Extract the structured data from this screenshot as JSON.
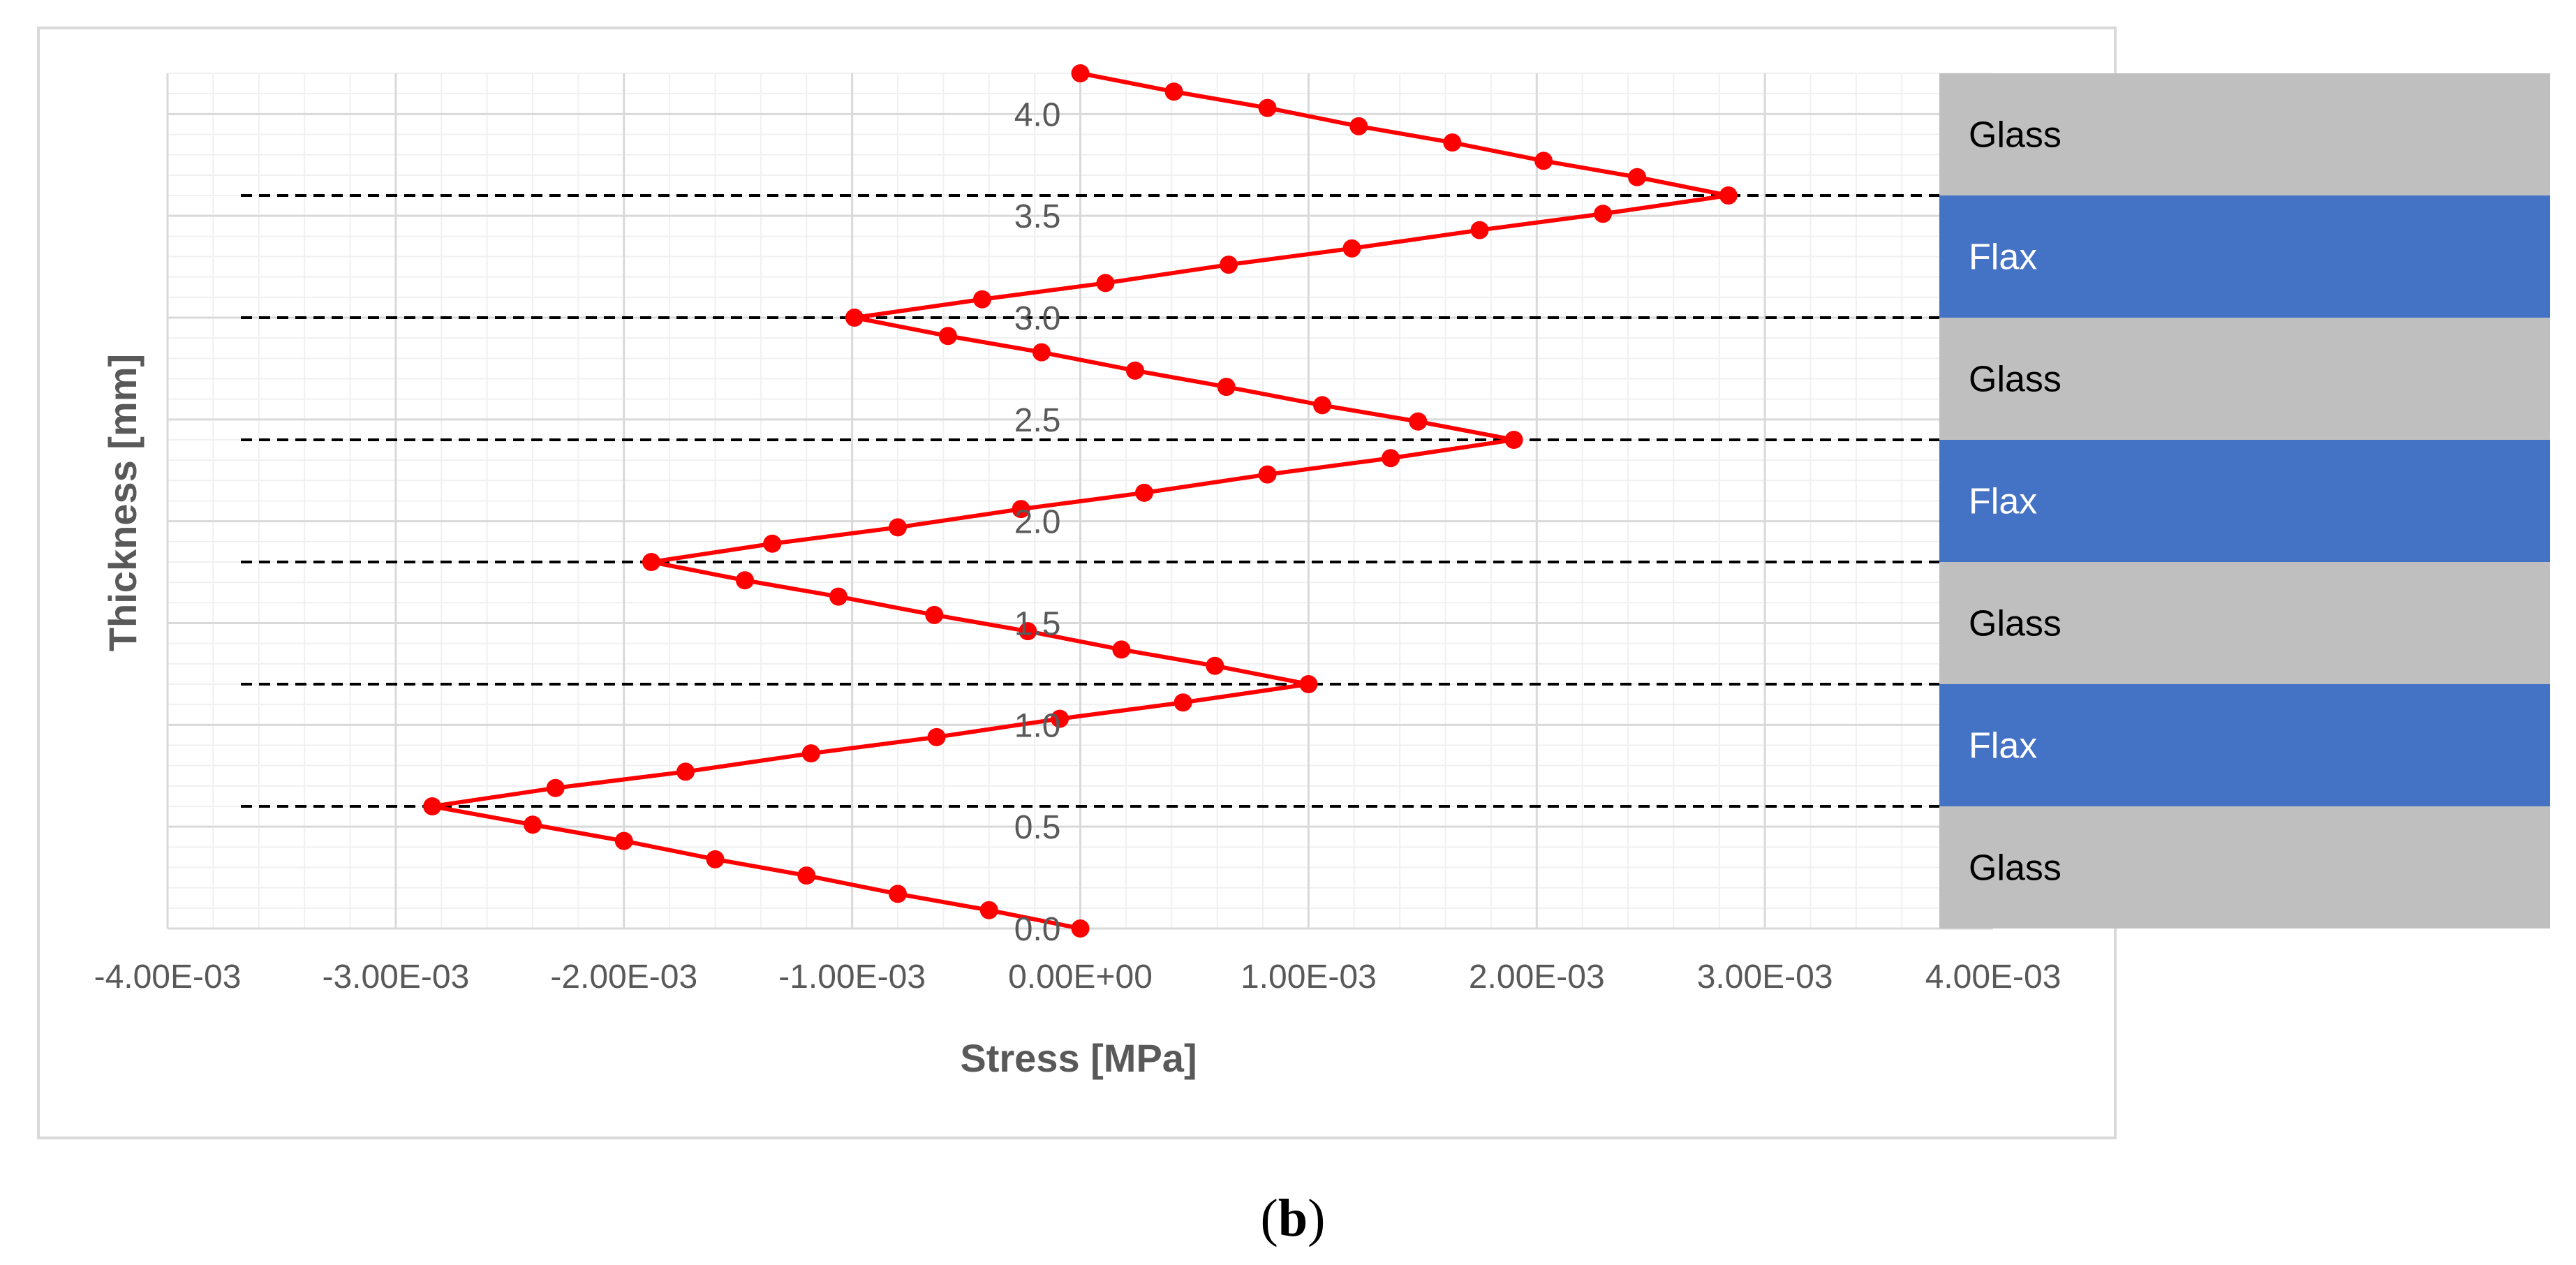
{
  "chart_data": {
    "type": "line",
    "title": "",
    "xlabel": "Stress [MPa]",
    "ylabel": "Thickness [mm]",
    "xlim": [
      -0.004,
      0.004
    ],
    "ylim": [
      0,
      4.2
    ],
    "x_tick_labels": [
      "-4.00E-03",
      "-3.00E-03",
      "-2.00E-03",
      "-1.00E-03",
      "0.00E+00",
      "1.00E-03",
      "2.00E-03",
      "3.00E-03",
      "4.00E-03"
    ],
    "y_tick_labels": [
      "0.0",
      "0.5",
      "1.0",
      "1.5",
      "2.0",
      "2.5",
      "3.0",
      "3.5",
      "4.0"
    ],
    "grid": true,
    "series": [
      {
        "color": "#ff0000",
        "points": [
          [
            0.0,
            0.0
          ],
          [
            -0.0004,
            0.09
          ],
          [
            -0.0008,
            0.17
          ],
          [
            -0.0012,
            0.26
          ],
          [
            -0.0016,
            0.34
          ],
          [
            -0.002,
            0.43
          ],
          [
            -0.0024,
            0.51
          ],
          [
            -0.00284,
            0.6
          ],
          [
            -0.0023,
            0.69
          ],
          [
            -0.00173,
            0.77
          ],
          [
            -0.00118,
            0.86
          ],
          [
            -0.00063,
            0.94
          ],
          [
            -9e-05,
            1.03
          ],
          [
            0.00045,
            1.11
          ],
          [
            0.001,
            1.2
          ],
          [
            0.00059,
            1.29
          ],
          [
            0.00018,
            1.37
          ],
          [
            -0.00023,
            1.46
          ],
          [
            -0.00064,
            1.54
          ],
          [
            -0.00106,
            1.63
          ],
          [
            -0.00147,
            1.71
          ],
          [
            -0.00188,
            1.8
          ],
          [
            -0.00135,
            1.89
          ],
          [
            -0.0008,
            1.97
          ],
          [
            -0.00026,
            2.06
          ],
          [
            0.00028,
            2.14
          ],
          [
            0.00082,
            2.23
          ],
          [
            0.00136,
            2.31
          ],
          [
            0.0019,
            2.4
          ],
          [
            0.00148,
            2.49
          ],
          [
            0.00106,
            2.57
          ],
          [
            0.00064,
            2.66
          ],
          [
            0.00024,
            2.74
          ],
          [
            -0.00017,
            2.83
          ],
          [
            -0.00058,
            2.91
          ],
          [
            -0.00099,
            3.0
          ],
          [
            -0.00043,
            3.09
          ],
          [
            0.00011,
            3.17
          ],
          [
            0.00065,
            3.26
          ],
          [
            0.00119,
            3.34
          ],
          [
            0.00175,
            3.43
          ],
          [
            0.00229,
            3.51
          ],
          [
            0.00284,
            3.6
          ],
          [
            0.00244,
            3.69
          ],
          [
            0.00203,
            3.77
          ],
          [
            0.00163,
            3.86
          ],
          [
            0.00122,
            3.94
          ],
          [
            0.00082,
            4.03
          ],
          [
            0.00041,
            4.11
          ],
          [
            0.0,
            4.2
          ]
        ]
      }
    ],
    "layer_boundaries": [
      0.6,
      1.2,
      1.8,
      2.4,
      3.0,
      3.6
    ],
    "layers": [
      {
        "label": "Glass",
        "from": 3.6,
        "to": 4.2,
        "color": "#bfbfbf",
        "text_color": "#000000"
      },
      {
        "label": "Flax",
        "from": 3.0,
        "to": 3.6,
        "color": "#4472c4",
        "text_color": "#ffffff"
      },
      {
        "label": "Glass",
        "from": 2.4,
        "to": 3.0,
        "color": "#bfbfbf",
        "text_color": "#000000"
      },
      {
        "label": "Flax",
        "from": 1.8,
        "to": 2.4,
        "color": "#4472c4",
        "text_color": "#ffffff"
      },
      {
        "label": "Glass",
        "from": 1.2,
        "to": 1.8,
        "color": "#bfbfbf",
        "text_color": "#000000"
      },
      {
        "label": "Flax",
        "from": 0.6,
        "to": 1.2,
        "color": "#4472c4",
        "text_color": "#ffffff"
      },
      {
        "label": "Glass",
        "from": 0.0,
        "to": 0.6,
        "color": "#bfbfbf",
        "text_color": "#000000"
      }
    ]
  },
  "caption": {
    "open": "(",
    "letter": "b",
    "close": ")"
  }
}
